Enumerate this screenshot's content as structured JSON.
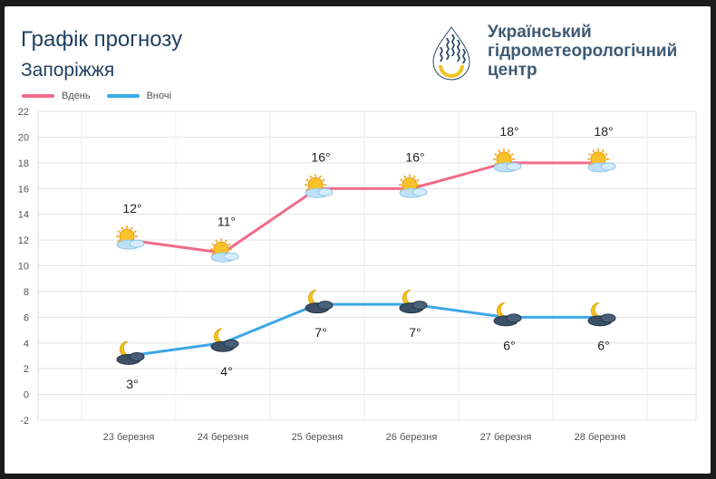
{
  "header": {
    "title": "Графік прогнозу",
    "city": "Запоріжжя",
    "org_line1": "Український",
    "org_line2": "гідрометеорологічний",
    "org_line3": "центр"
  },
  "colors": {
    "day": "#f06c8b",
    "night": "#3da7e8",
    "text": "#1f3f5f"
  },
  "chart_data": {
    "type": "line",
    "categories": [
      "23 березня",
      "24 березня",
      "25 березня",
      "26 березня",
      "27 березня",
      "28 березня"
    ],
    "series": [
      {
        "name": "Вдень",
        "values": [
          12,
          11,
          16,
          16,
          18,
          18
        ],
        "labels": [
          "12°",
          "11°",
          "16°",
          "16°",
          "18°",
          "18°"
        ],
        "icon": "sun-cloud-icon"
      },
      {
        "name": "Вночі",
        "values": [
          3,
          4,
          7,
          7,
          6,
          6
        ],
        "labels": [
          "3°",
          "4°",
          "7°",
          "7°",
          "6°",
          "6°"
        ],
        "icon": "moon-cloud-icon"
      }
    ],
    "ylim": [
      -2,
      22
    ],
    "yticks": [
      -2,
      0,
      2,
      4,
      6,
      8,
      10,
      12,
      14,
      16,
      18,
      20,
      22
    ],
    "grid": true,
    "legend": "top-left"
  }
}
